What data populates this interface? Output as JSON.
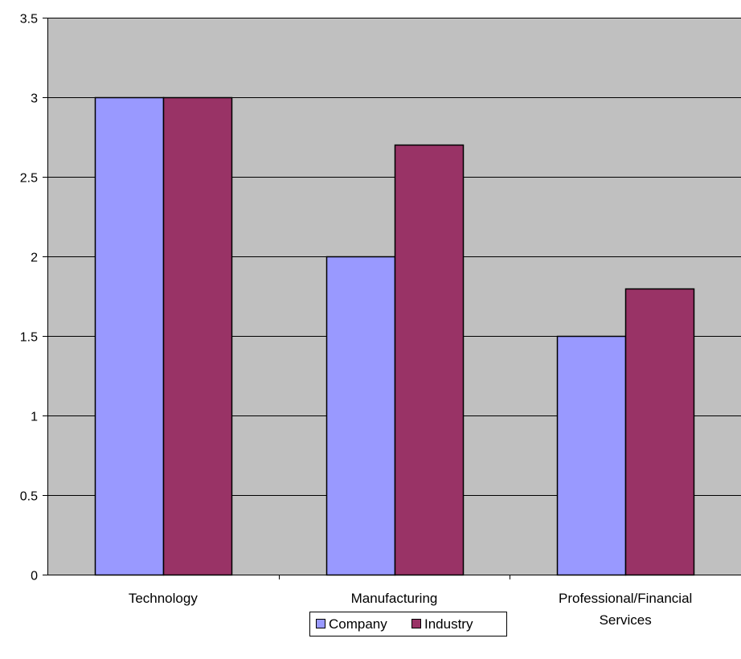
{
  "chart_data": {
    "type": "bar",
    "title": "",
    "xlabel": "",
    "ylabel": "",
    "categories": [
      [
        "Technology"
      ],
      [
        "Manufacturing"
      ],
      [
        "Professional/Financial",
        "Services"
      ]
    ],
    "series": [
      {
        "name": "Company",
        "values": [
          3.0,
          2.0,
          1.5
        ],
        "color": "#9999ff"
      },
      {
        "name": "Industry",
        "values": [
          3.0,
          2.7,
          1.8
        ],
        "color": "#993366"
      }
    ],
    "ylim": [
      0,
      3.5
    ],
    "yticks": [
      "0",
      "0.5",
      "1",
      "1.5",
      "2",
      "2.5",
      "3",
      "3.5"
    ],
    "grid": true,
    "plot_background": "#c0c0c0",
    "legend_position": "bottom"
  }
}
